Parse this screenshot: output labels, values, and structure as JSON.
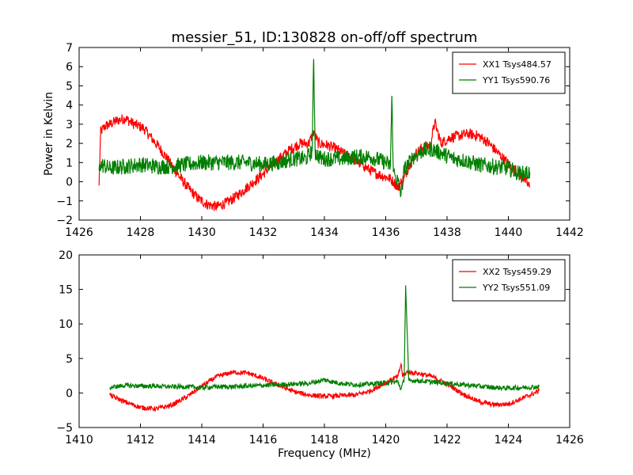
{
  "chart_data": [
    {
      "type": "line",
      "title": "messier_51, ID:130828 on-off/off spectrum",
      "xlabel": "",
      "ylabel": "Power in Kelvin",
      "xlim": [
        1426,
        1442
      ],
      "ylim": [
        -2,
        7
      ],
      "xticks": [
        1426,
        1428,
        1430,
        1432,
        1434,
        1436,
        1438,
        1440,
        1442
      ],
      "yticks": [
        -2,
        -1,
        0,
        1,
        2,
        3,
        4,
        5,
        6,
        7
      ],
      "legend_position": "top-right",
      "series": [
        {
          "name": "XX1 Tsys484.57",
          "color": "#ff0000",
          "x": [
            1426.65,
            1426.7,
            1426.85,
            1427.0,
            1427.25,
            1427.5,
            1427.8,
            1428.1,
            1428.4,
            1428.7,
            1429.0,
            1429.3,
            1429.6,
            1429.9,
            1430.2,
            1430.5,
            1430.8,
            1431.1,
            1431.4,
            1431.7,
            1432.0,
            1432.3,
            1432.6,
            1432.9,
            1433.2,
            1433.5,
            1433.65,
            1433.8,
            1434.1,
            1434.4,
            1434.7,
            1435.0,
            1435.3,
            1435.6,
            1435.9,
            1436.1,
            1436.25,
            1436.4,
            1436.6,
            1436.8,
            1437.0,
            1437.2,
            1437.45,
            1437.6,
            1437.8,
            1438.1,
            1438.4,
            1438.7,
            1439.0,
            1439.3,
            1439.6,
            1439.9,
            1440.2,
            1440.5,
            1440.7
          ],
          "y": [
            -0.2,
            2.6,
            2.9,
            3.0,
            3.2,
            3.3,
            3.0,
            2.8,
            2.2,
            1.6,
            0.9,
            0.2,
            -0.4,
            -0.9,
            -1.2,
            -1.3,
            -1.1,
            -0.8,
            -0.4,
            0.0,
            0.4,
            0.9,
            1.3,
            1.7,
            2.0,
            2.0,
            2.6,
            2.0,
            1.9,
            1.7,
            1.4,
            1.1,
            0.8,
            0.5,
            0.3,
            0.2,
            0.0,
            -0.3,
            0.2,
            1.0,
            1.5,
            1.8,
            1.9,
            3.1,
            2.0,
            2.3,
            2.4,
            2.5,
            2.4,
            2.1,
            1.6,
            1.1,
            0.6,
            0.2,
            -0.3
          ]
        },
        {
          "name": "YY1 Tsys590.76",
          "color": "#007f00",
          "x": [
            1426.65,
            1426.7,
            1427.0,
            1427.5,
            1428.0,
            1428.5,
            1429.0,
            1429.5,
            1430.0,
            1430.5,
            1431.0,
            1431.5,
            1432.0,
            1432.5,
            1433.0,
            1433.4,
            1433.6,
            1433.65,
            1433.7,
            1433.9,
            1434.2,
            1434.6,
            1435.0,
            1435.5,
            1436.0,
            1436.15,
            1436.2,
            1436.25,
            1436.4,
            1436.5,
            1436.6,
            1436.9,
            1437.2,
            1437.5,
            1437.8,
            1438.2,
            1438.6,
            1439.0,
            1439.5,
            1440.0,
            1440.4,
            1440.7
          ],
          "y": [
            0.6,
            0.9,
            0.7,
            0.8,
            0.9,
            0.8,
            0.8,
            0.9,
            1.0,
            1.0,
            1.0,
            1.0,
            0.9,
            1.0,
            1.2,
            1.2,
            1.6,
            6.4,
            1.5,
            1.2,
            1.2,
            1.2,
            1.3,
            1.3,
            1.0,
            0.8,
            4.4,
            0.5,
            0.0,
            -0.7,
            0.6,
            1.3,
            1.6,
            1.7,
            1.5,
            1.2,
            1.1,
            0.9,
            0.8,
            0.7,
            0.4,
            0.5
          ]
        }
      ]
    },
    {
      "type": "line",
      "title": "",
      "xlabel": "Frequency (MHz)",
      "ylabel": "",
      "xlim": [
        1410,
        1426
      ],
      "ylim": [
        -5,
        20
      ],
      "xticks": [
        1410,
        1412,
        1414,
        1416,
        1418,
        1420,
        1422,
        1424,
        1426
      ],
      "yticks": [
        -5,
        0,
        5,
        10,
        15,
        20
      ],
      "legend_position": "top-right",
      "series": [
        {
          "name": "XX2 Tsys459.29",
          "color": "#ff0000",
          "x": [
            1411.0,
            1411.5,
            1412.0,
            1412.5,
            1413.0,
            1413.5,
            1414.0,
            1414.5,
            1415.0,
            1415.5,
            1416.0,
            1416.5,
            1417.0,
            1417.5,
            1418.0,
            1418.5,
            1419.0,
            1419.5,
            1420.0,
            1420.4,
            1420.5,
            1420.55,
            1420.7,
            1421.0,
            1421.5,
            1422.0,
            1422.5,
            1423.0,
            1423.5,
            1424.0,
            1424.5,
            1425.0
          ],
          "y": [
            -0.3,
            -1.3,
            -2.1,
            -2.3,
            -1.8,
            -0.6,
            1.0,
            2.4,
            3.0,
            2.9,
            2.1,
            1.1,
            0.2,
            -0.3,
            -0.5,
            -0.4,
            -0.3,
            0.3,
            1.5,
            2.4,
            4.2,
            2.5,
            3.0,
            2.9,
            2.4,
            1.3,
            -0.1,
            -1.2,
            -1.7,
            -1.6,
            -0.7,
            0.3
          ]
        },
        {
          "name": "YY2 Tsys551.09",
          "color": "#007f00",
          "x": [
            1411.0,
            1411.5,
            1412.0,
            1412.5,
            1413.0,
            1413.5,
            1414.0,
            1414.5,
            1415.0,
            1415.5,
            1416.0,
            1416.5,
            1417.0,
            1417.5,
            1418.0,
            1418.5,
            1419.0,
            1419.5,
            1420.0,
            1420.4,
            1420.5,
            1420.6,
            1420.65,
            1420.75,
            1421.0,
            1421.5,
            1422.0,
            1422.5,
            1423.0,
            1423.5,
            1424.0,
            1424.5,
            1425.0
          ],
          "y": [
            0.8,
            1.1,
            1.0,
            1.0,
            0.9,
            0.9,
            0.8,
            0.9,
            0.9,
            1.0,
            1.1,
            1.2,
            1.3,
            1.4,
            1.9,
            1.4,
            1.2,
            1.3,
            1.5,
            1.6,
            0.5,
            2.0,
            15.6,
            1.8,
            1.8,
            1.6,
            1.4,
            1.2,
            1.0,
            0.8,
            0.7,
            0.8,
            0.9
          ]
        }
      ]
    }
  ]
}
